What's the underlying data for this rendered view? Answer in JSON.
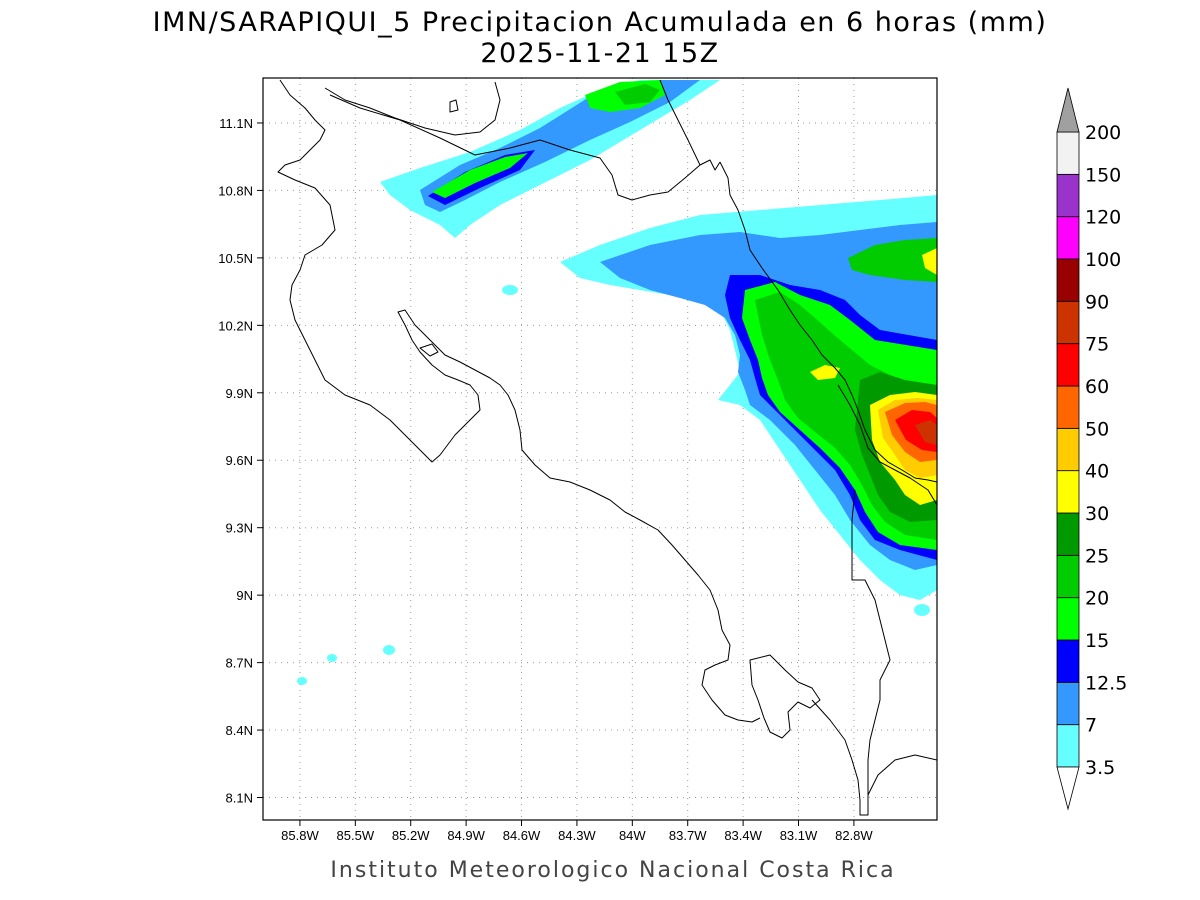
{
  "header": {
    "title": "IMN/SARAPIQUI_5 Precipitacion Acumulada en 6 horas (mm)",
    "datetime": "2025-11-21 15Z"
  },
  "footer": {
    "credit": "Instituto Meteorologico Nacional Costa Rica"
  },
  "map": {
    "lon_range": [
      -86.0,
      -82.35
    ],
    "lat_range": [
      8.0,
      11.3
    ],
    "lon_ticks": [
      {
        "label": "85.8W",
        "value": -85.8
      },
      {
        "label": "85.5W",
        "value": -85.5
      },
      {
        "label": "85.2W",
        "value": -85.2
      },
      {
        "label": "84.9W",
        "value": -84.9
      },
      {
        "label": "84.6W",
        "value": -84.6
      },
      {
        "label": "84.3W",
        "value": -84.3
      },
      {
        "label": "84W",
        "value": -84.0
      },
      {
        "label": "83.7W",
        "value": -83.7
      },
      {
        "label": "83.4W",
        "value": -83.4
      },
      {
        "label": "83.1W",
        "value": -83.1
      },
      {
        "label": "82.8W",
        "value": -82.8
      }
    ],
    "lat_ticks": [
      {
        "label": "11.1N",
        "value": 11.1
      },
      {
        "label": "10.8N",
        "value": 10.8
      },
      {
        "label": "10.5N",
        "value": 10.5
      },
      {
        "label": "10.2N",
        "value": 10.2
      },
      {
        "label": "9.9N",
        "value": 9.9
      },
      {
        "label": "9.6N",
        "value": 9.6
      },
      {
        "label": "9.3N",
        "value": 9.3
      },
      {
        "label": "9N",
        "value": 9.0
      },
      {
        "label": "8.7N",
        "value": 8.7
      },
      {
        "label": "8.4N",
        "value": 8.4
      },
      {
        "label": "8.1N",
        "value": 8.1
      }
    ]
  },
  "legend": {
    "levels": [
      {
        "label": "3.5",
        "color": "#66ffff"
      },
      {
        "label": "7",
        "color": "#3399ff"
      },
      {
        "label": "12.5",
        "color": "#0000ff"
      },
      {
        "label": "15",
        "color": "#00ff00"
      },
      {
        "label": "20",
        "color": "#00cc00"
      },
      {
        "label": "25",
        "color": "#009900"
      },
      {
        "label": "30",
        "color": "#ffff00"
      },
      {
        "label": "40",
        "color": "#ffcc00"
      },
      {
        "label": "50",
        "color": "#ff6600"
      },
      {
        "label": "60",
        "color": "#ff0000"
      },
      {
        "label": "75",
        "color": "#cc3300"
      },
      {
        "label": "90",
        "color": "#990000"
      },
      {
        "label": "100",
        "color": "#ff00ff"
      },
      {
        "label": "120",
        "color": "#9933cc"
      },
      {
        "label": "150",
        "color": "#f2f2f2"
      },
      {
        "label": "200",
        "color": "#a0a0a0"
      }
    ]
  }
}
